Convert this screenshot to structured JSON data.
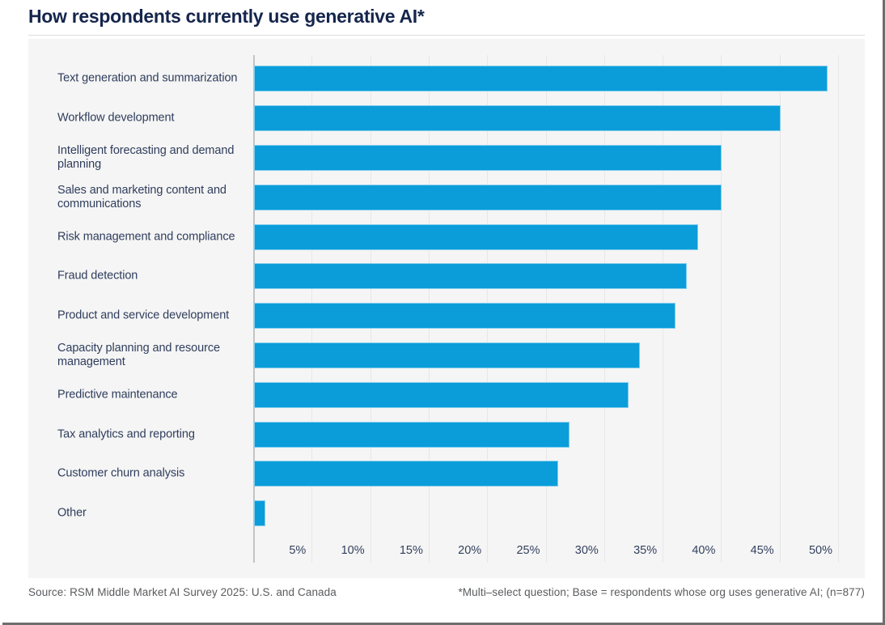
{
  "title": "How respondents currently use generative AI*",
  "footer": {
    "source": "Source: RSM Middle Market AI Survey 2025: U.S. and Canada",
    "note": "*Multi–select question; Base = respondents whose org uses generative AI; (n=877)"
  },
  "colors": {
    "bar": "#0a9dda",
    "title_text": "#15254c",
    "label_text": "#2f3d5c",
    "panel_background": "#f5f5f5",
    "gridline": "#e7e7e7",
    "axis_line": "#c3c3c3",
    "footer_text": "#595b5e"
  },
  "chart_data": {
    "type": "bar",
    "orientation": "horizontal",
    "title": "How respondents currently use generative AI*",
    "categories": [
      "Text generation and summarization",
      "Workflow development",
      "Intelligent forecasting and demand planning",
      "Sales and marketing content and communications",
      "Risk management and compliance",
      "Fraud detection",
      "Product and service development",
      "Capacity planning and resource management",
      "Predictive maintenance",
      "Tax analytics and reporting",
      "Customer churn analysis",
      "Other"
    ],
    "values": [
      49,
      45,
      40,
      40,
      38,
      37,
      36,
      33,
      32,
      27,
      26,
      1
    ],
    "unit": "%",
    "x_ticks": [
      "5%",
      "10%",
      "15%",
      "20%",
      "25%",
      "30%",
      "35%",
      "40%",
      "45%",
      "50%"
    ],
    "x_tick_step": 5,
    "xlim": [
      0,
      52.3
    ],
    "grid": "vertical",
    "legend": "none"
  }
}
